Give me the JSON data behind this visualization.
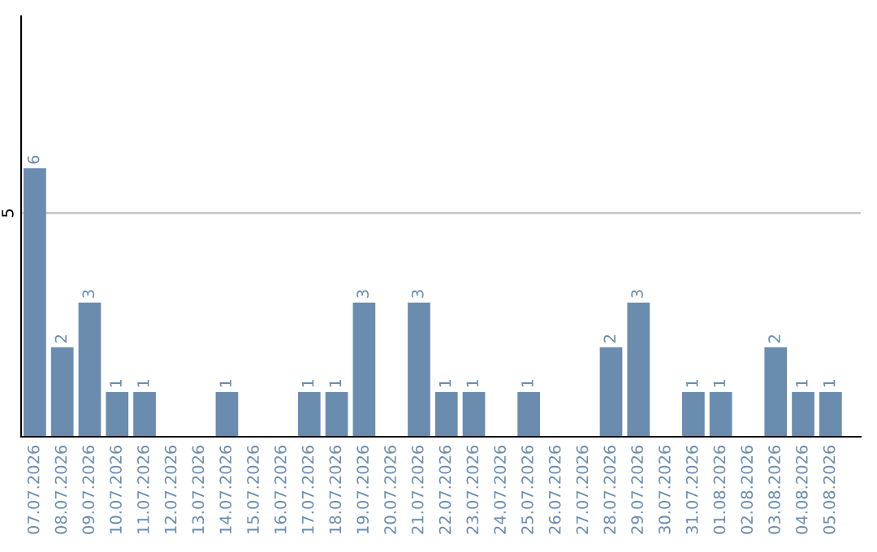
{
  "chart_data": {
    "type": "bar",
    "categories": [
      "07.07.2026",
      "08.07.2026",
      "09.07.2026",
      "10.07.2026",
      "11.07.2026",
      "12.07.2026",
      "13.07.2026",
      "14.07.2026",
      "15.07.2026",
      "16.07.2026",
      "17.07.2026",
      "18.07.2026",
      "19.07.2026",
      "20.07.2026",
      "21.07.2026",
      "22.07.2026",
      "23.07.2026",
      "24.07.2026",
      "25.07.2026",
      "26.07.2026",
      "27.07.2026",
      "28.07.2026",
      "29.07.2026",
      "30.07.2026",
      "31.07.2026",
      "01.08.2026",
      "02.08.2026",
      "03.08.2026",
      "04.08.2026",
      "05.08.2026"
    ],
    "values": [
      6,
      2,
      3,
      1,
      1,
      0,
      0,
      1,
      0,
      0,
      1,
      1,
      3,
      0,
      3,
      1,
      1,
      0,
      1,
      0,
      0,
      2,
      3,
      0,
      1,
      1,
      0,
      2,
      1,
      1
    ],
    "value_labels": [
      "6",
      "2",
      "3",
      "1",
      "1",
      null,
      null,
      "1",
      null,
      null,
      "1",
      "1",
      "3",
      null,
      "3",
      "1",
      "1",
      null,
      "1",
      null,
      null,
      "2",
      "3",
      null,
      "1",
      "1",
      null,
      "2",
      "1",
      "1"
    ],
    "color": "#6a8caf",
    "ylim": [
      0,
      9.4
    ],
    "yticks": [
      5
    ],
    "grid": "y"
  }
}
